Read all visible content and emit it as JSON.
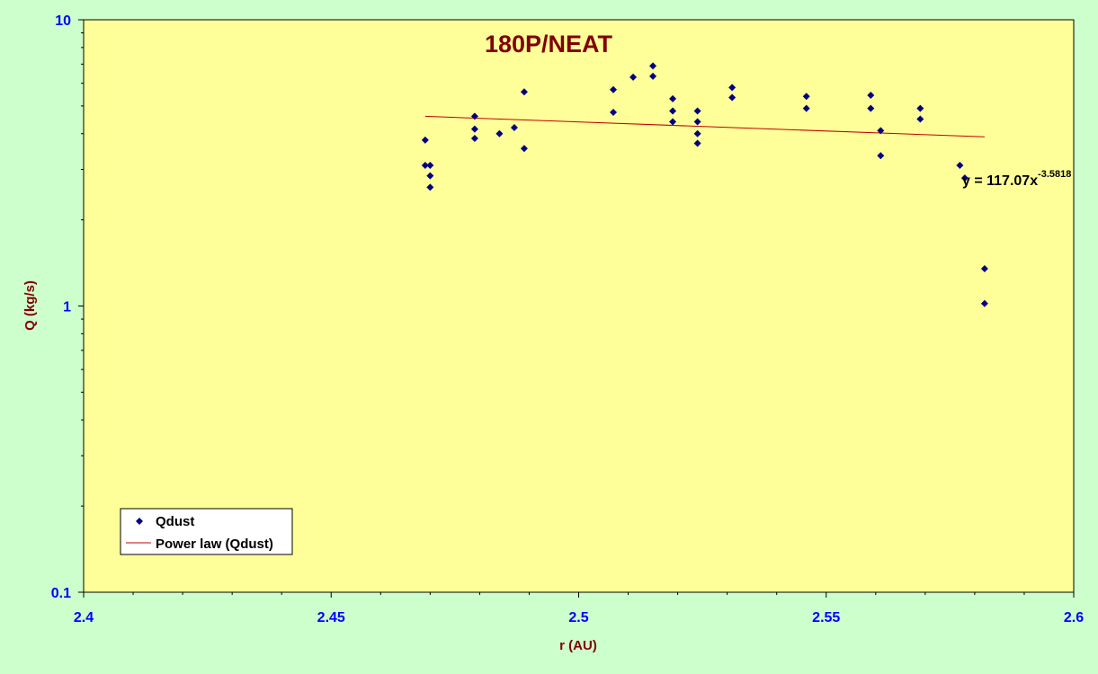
{
  "chart_data": {
    "type": "scatter",
    "title": "180P/NEAT",
    "xlabel": "r (AU)",
    "ylabel": "Q (kg/s)",
    "xlim": [
      2.4,
      2.6
    ],
    "ylim": [
      0.1,
      10
    ],
    "y_scale": "log",
    "x_ticks": [
      "2.4",
      "2.45",
      "2.5",
      "2.55",
      "2.6"
    ],
    "y_ticks": [
      "10",
      "1",
      "0.1"
    ],
    "grid": false,
    "legend_position": "bottom-left",
    "colors": {
      "page_background": "#ccffcc",
      "plot_background": "#ffff99",
      "marker": "#000080",
      "trendline": "#c00000",
      "tick_labels": "#0000ff",
      "titles": "#800000"
    },
    "series": [
      {
        "name": "Qdust",
        "marker": "diamond",
        "points": [
          [
            2.469,
            3.8
          ],
          [
            2.469,
            3.1
          ],
          [
            2.47,
            3.1
          ],
          [
            2.47,
            2.85
          ],
          [
            2.47,
            2.6
          ],
          [
            2.479,
            4.6
          ],
          [
            2.479,
            4.15
          ],
          [
            2.479,
            3.85
          ],
          [
            2.484,
            4.0
          ],
          [
            2.487,
            4.2
          ],
          [
            2.489,
            5.6
          ],
          [
            2.489,
            3.55
          ],
          [
            2.507,
            5.7
          ],
          [
            2.507,
            4.75
          ],
          [
            2.511,
            6.3
          ],
          [
            2.515,
            6.9
          ],
          [
            2.515,
            6.35
          ],
          [
            2.519,
            5.3
          ],
          [
            2.519,
            4.8
          ],
          [
            2.519,
            4.4
          ],
          [
            2.524,
            4.8
          ],
          [
            2.524,
            4.4
          ],
          [
            2.524,
            4.0
          ],
          [
            2.524,
            3.7
          ],
          [
            2.531,
            5.8
          ],
          [
            2.531,
            5.35
          ],
          [
            2.546,
            5.4
          ],
          [
            2.546,
            4.9
          ],
          [
            2.559,
            5.45
          ],
          [
            2.559,
            4.9
          ],
          [
            2.561,
            4.1
          ],
          [
            2.561,
            3.35
          ],
          [
            2.569,
            4.9
          ],
          [
            2.569,
            4.5
          ],
          [
            2.577,
            3.1
          ],
          [
            2.578,
            2.8
          ],
          [
            2.582,
            1.35
          ],
          [
            2.582,
            1.02
          ]
        ]
      },
      {
        "name": "Power law (Qdust)",
        "type": "line",
        "equation": "y = 117.07x",
        "exponent": "-3.5818",
        "coefficient": 117.07,
        "power": -3.5818,
        "x_range": [
          2.469,
          2.582
        ]
      }
    ]
  }
}
